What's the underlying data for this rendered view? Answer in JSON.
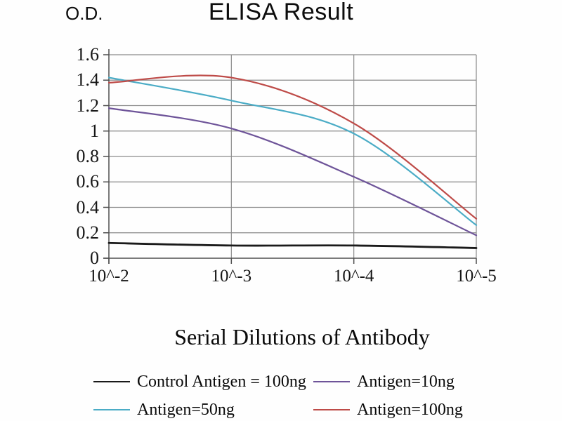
{
  "title": "ELISA Result",
  "y_axis_label": "O.D.",
  "x_axis_label": "Serial Dilutions of Antibody",
  "chart_data": {
    "type": "line",
    "title": "ELISA Result",
    "xlabel": "Serial Dilutions of Antibody",
    "ylabel": "O.D.",
    "categories": [
      "10^-2",
      "10^-3",
      "10^-4",
      "10^-5"
    ],
    "series": [
      {
        "name": "Control Antigen = 100ng",
        "color": "#1a1a1a",
        "values": [
          0.12,
          0.1,
          0.1,
          0.08
        ]
      },
      {
        "name": "Antigen=10ng",
        "color": "#6e5499",
        "values": [
          1.18,
          1.02,
          0.64,
          0.18
        ]
      },
      {
        "name": "Antigen=50ng",
        "color": "#4bacc6",
        "values": [
          1.42,
          1.24,
          0.98,
          0.26
        ]
      },
      {
        "name": "Antigen=100ng",
        "color": "#be4b48",
        "values": [
          1.38,
          1.42,
          1.06,
          0.31
        ]
      }
    ],
    "ylim": [
      0,
      1.6
    ],
    "y_tick_labels": [
      "0",
      "0.2",
      "0.4",
      "0.6",
      "0.8",
      "1",
      "1.2",
      "1.4",
      "1.6"
    ],
    "grid": true,
    "legend_position": "bottom",
    "legend_order": [
      "Control Antigen = 100ng",
      "Antigen=10ng",
      "Antigen=50ng",
      "Antigen=100ng"
    ]
  },
  "colors": {
    "grid": "#8a8a8a",
    "axis": "#4f4f4f",
    "background": "#fefefe",
    "text": "#111111"
  }
}
